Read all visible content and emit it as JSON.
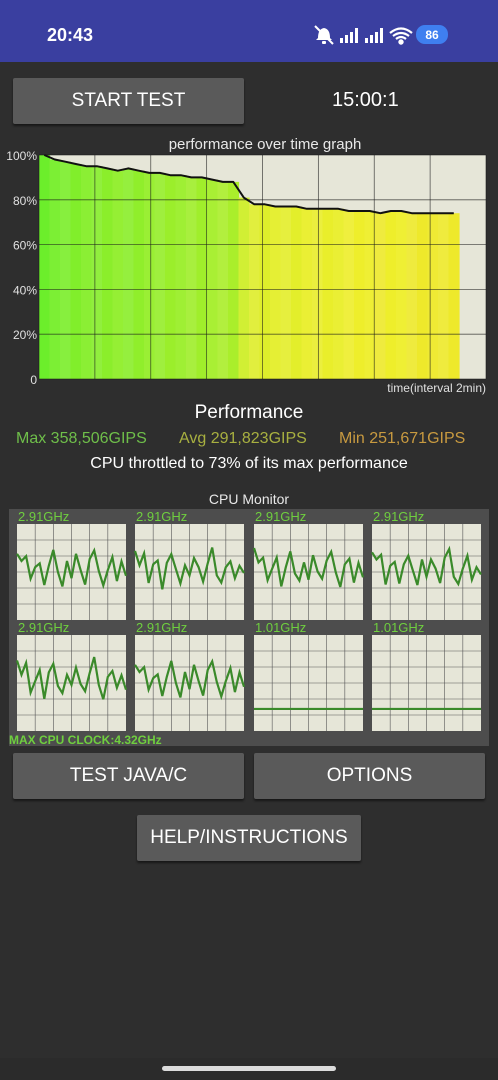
{
  "status_bar": {
    "time": "20:43",
    "battery": "86",
    "icons": [
      "mute-icon",
      "signal-icon",
      "signal-icon",
      "wifi-icon",
      "battery-icon"
    ]
  },
  "controls": {
    "start_label": "START TEST",
    "timer": "15:00:1",
    "test_java_label": "TEST JAVA/C",
    "options_label": "OPTIONS",
    "help_label": "HELP/INSTRUCTIONS"
  },
  "graph": {
    "title": "performance over time graph",
    "y_ticks": [
      "100%",
      "80%",
      "60%",
      "40%",
      "20%",
      "0"
    ],
    "x_label": "time(interval 2min)"
  },
  "performance": {
    "title": "Performance",
    "max": "Max 358,506GIPS",
    "avg": "Avg 291,823GIPS",
    "min": "Min 251,671GIPS",
    "throttle": "CPU throttled to 73% of its max performance",
    "max_color": "#6fbf4a",
    "avg_color": "#a8b040",
    "min_color": "#c89a40"
  },
  "cpu_monitor": {
    "title": "CPU Monitor",
    "cores": [
      "2.91GHz",
      "2.91GHz",
      "2.91GHz",
      "2.91GHz",
      "2.91GHz",
      "2.91GHz",
      "1.01GHz",
      "1.01GHz"
    ],
    "max_clock": "MAX CPU CLOCK:4.32GHz"
  },
  "chart_data": {
    "type": "line",
    "title": "performance over time graph",
    "xlabel": "time(interval 2min)",
    "ylabel": "",
    "ylim": [
      0,
      100
    ],
    "y_ticks": [
      "100%",
      "80%",
      "60%",
      "40%",
      "20%",
      "0"
    ],
    "series": [
      {
        "values": [
          100,
          98,
          97,
          96,
          95,
          95,
          94,
          93,
          94,
          93,
          92,
          92,
          91,
          91,
          90,
          90,
          89,
          88,
          88,
          81,
          78,
          78,
          77,
          77,
          77,
          76,
          76,
          76,
          76,
          75,
          75,
          75,
          74,
          75,
          75,
          74,
          74,
          74,
          74,
          74
        ]
      }
    ],
    "grid": true
  }
}
